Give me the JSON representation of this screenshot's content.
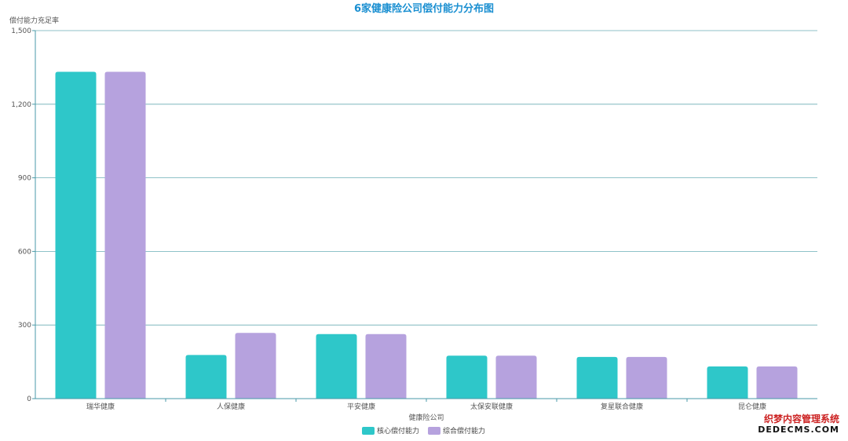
{
  "chart_data": {
    "type": "bar",
    "title": "6家健康险公司偿付能力分布图",
    "ylabel": "偿付能力充足率",
    "xlabel": "健康险公司",
    "ylim": [
      0,
      1500
    ],
    "yticks": [
      "0",
      "300",
      "600",
      "900",
      "1,200",
      "1,500"
    ],
    "ytick_values": [
      0,
      300,
      600,
      900,
      1200,
      1500
    ],
    "categories": [
      "瑞华健康",
      "人保健康",
      "平安健康",
      "太保安联健康",
      "复星联合健康",
      "昆仑健康"
    ],
    "series": [
      {
        "name": "核心偿付能力",
        "values": [
          1332,
          178,
          263,
          175,
          170,
          131
        ]
      },
      {
        "name": "综合偿付能力",
        "values": [
          1332,
          268,
          263,
          175,
          170,
          131
        ]
      }
    ],
    "grid": true,
    "legend_position": "bottom-center"
  },
  "colors": {
    "title": "#1a8fd1",
    "series": [
      "#2ec7c9",
      "#b6a2de"
    ],
    "axis": "#4a9aa8",
    "grid": "#6aaeb5"
  },
  "watermark": {
    "line1": "织梦内容管理系统",
    "line2": "DEDECMS.COM"
  }
}
